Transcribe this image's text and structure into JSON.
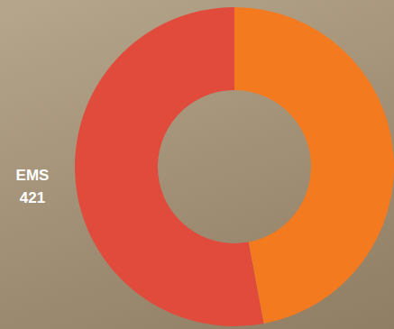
{
  "chart_data": {
    "type": "pie",
    "categories": [
      "EMS",
      null
    ],
    "values": [
      421,
      374
    ],
    "colors": [
      "#e04b3c",
      "#f47a20"
    ],
    "data_labels": true
  }
}
